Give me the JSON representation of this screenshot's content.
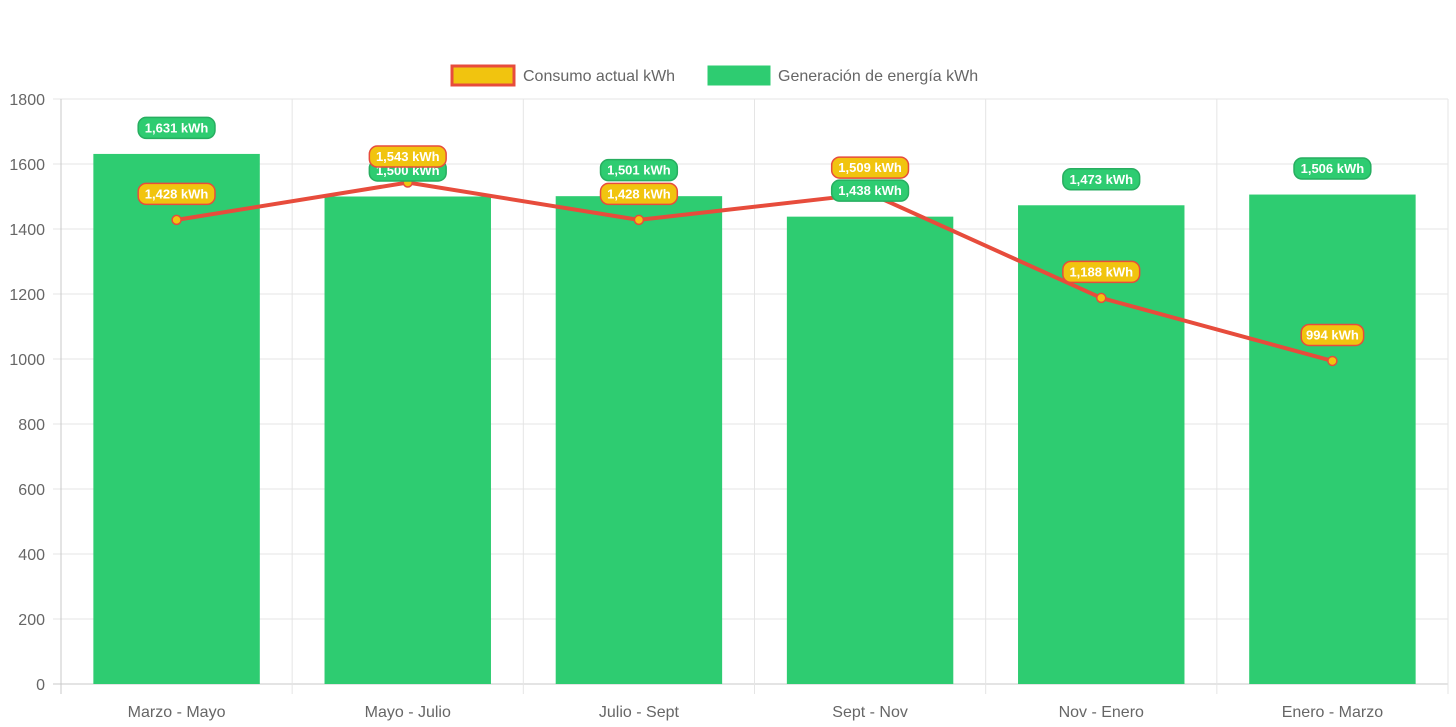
{
  "chart_data": {
    "type": "bar",
    "title": "",
    "xlabel": "",
    "ylabel": "",
    "ylim": [
      0,
      1800
    ],
    "y_ticks": [
      0,
      200,
      400,
      600,
      800,
      1000,
      1200,
      1400,
      1600,
      1800
    ],
    "grid": true,
    "legend_position": "top",
    "categories": [
      "Marzo - Mayo",
      "Mayo - Julio",
      "Julio - Sept",
      "Sept - Nov",
      "Nov - Enero",
      "Enero - Marzo"
    ],
    "series": [
      {
        "name": "Consumo actual kWh",
        "kind": "line",
        "values": [
          1428,
          1543,
          1428,
          1509,
          1188,
          994
        ],
        "labels": [
          "1,428 kWh",
          "1,543 kWh",
          "1,428 kWh",
          "1,509 kWh",
          "1,188 kWh",
          "994 kWh"
        ],
        "color": "#e74c3c",
        "fill_color": "#f1c40f"
      },
      {
        "name": "Generación de energía kWh",
        "kind": "bar",
        "values": [
          1631,
          1500,
          1501,
          1438,
          1473,
          1506
        ],
        "labels": [
          "1,631 kWh",
          "1,500 kWh",
          "1,501 kWh",
          "1,438 kWh",
          "1,473 kWh",
          "1,506 kWh"
        ],
        "color": "#2ecc71",
        "border_color": "#27ae60"
      }
    ]
  }
}
